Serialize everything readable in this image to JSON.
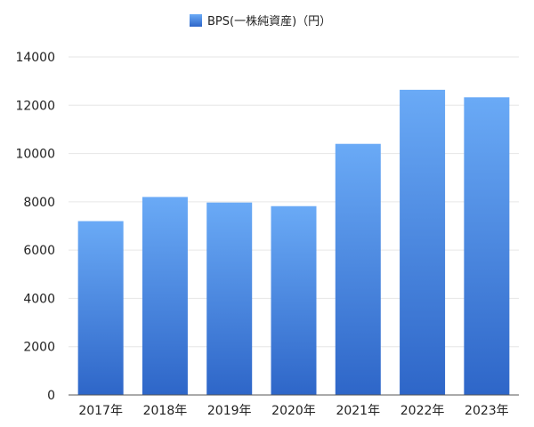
{
  "chart_data": {
    "type": "bar",
    "categories": [
      "2017年",
      "2018年",
      "2019年",
      "2020年",
      "2021年",
      "2022年",
      "2023年"
    ],
    "series": [
      {
        "name": "BPS(一株純資産)（円）",
        "values": [
          7200,
          8200,
          7970,
          7820,
          10400,
          12640,
          12330
        ]
      }
    ],
    "ylim": [
      0,
      14000
    ],
    "yticks": [
      0,
      2000,
      4000,
      6000,
      8000,
      10000,
      12000,
      14000
    ],
    "grid": true,
    "legend_placement": "top-center",
    "colors": {
      "bar_top": "#6aaaf6",
      "bar_bottom": "#2e66c8",
      "grid": "#e6e6e6",
      "axis": "#555555"
    }
  }
}
